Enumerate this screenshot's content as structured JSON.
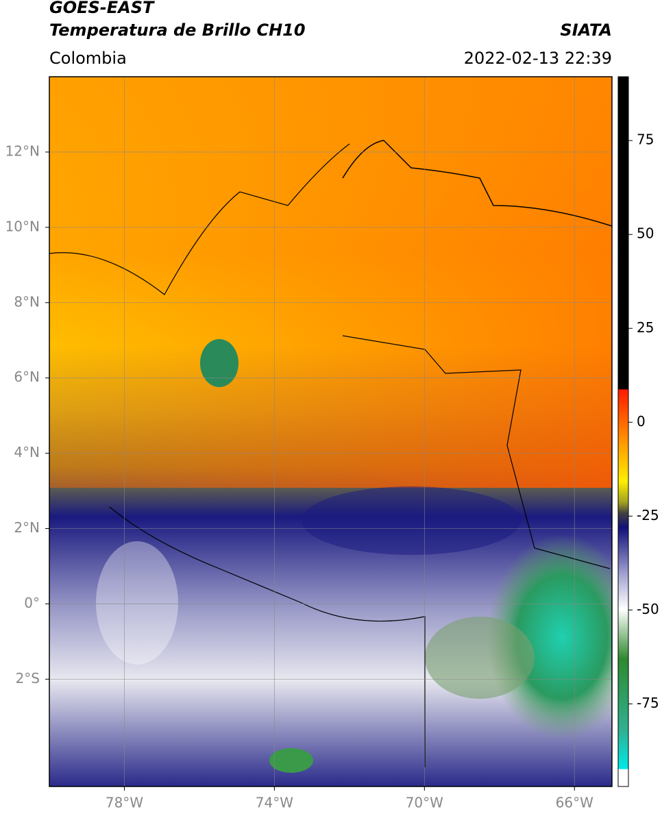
{
  "header": {
    "satellite": "GOES-EAST",
    "product": "Temperatura de Brillo CH10",
    "source": "SIATA",
    "region": "Colombia",
    "timestamp": "2022-02-13 22:39"
  },
  "map": {
    "lonlim": [
      -80,
      -65
    ],
    "latlim": [
      -4.85,
      14
    ],
    "lon_ticks": [
      {
        "value": -78,
        "label": "78°W"
      },
      {
        "value": -74,
        "label": "74°W"
      },
      {
        "value": -70,
        "label": "70°W"
      },
      {
        "value": -66,
        "label": "66°W"
      }
    ],
    "lat_ticks": [
      {
        "value": 12,
        "label": "12°N"
      },
      {
        "value": 10,
        "label": "10°N"
      },
      {
        "value": 8,
        "label": "8°N"
      },
      {
        "value": 6,
        "label": "6°N"
      },
      {
        "value": 4,
        "label": "4°N"
      },
      {
        "value": 2,
        "label": "2°N"
      },
      {
        "value": 0,
        "label": "0°"
      },
      {
        "value": -2,
        "label": "2°S"
      }
    ],
    "grid": true
  },
  "colorbar": {
    "range": [
      -97,
      92
    ],
    "ticks": [
      75,
      50,
      25,
      0,
      -25,
      -50,
      -75
    ]
  }
}
